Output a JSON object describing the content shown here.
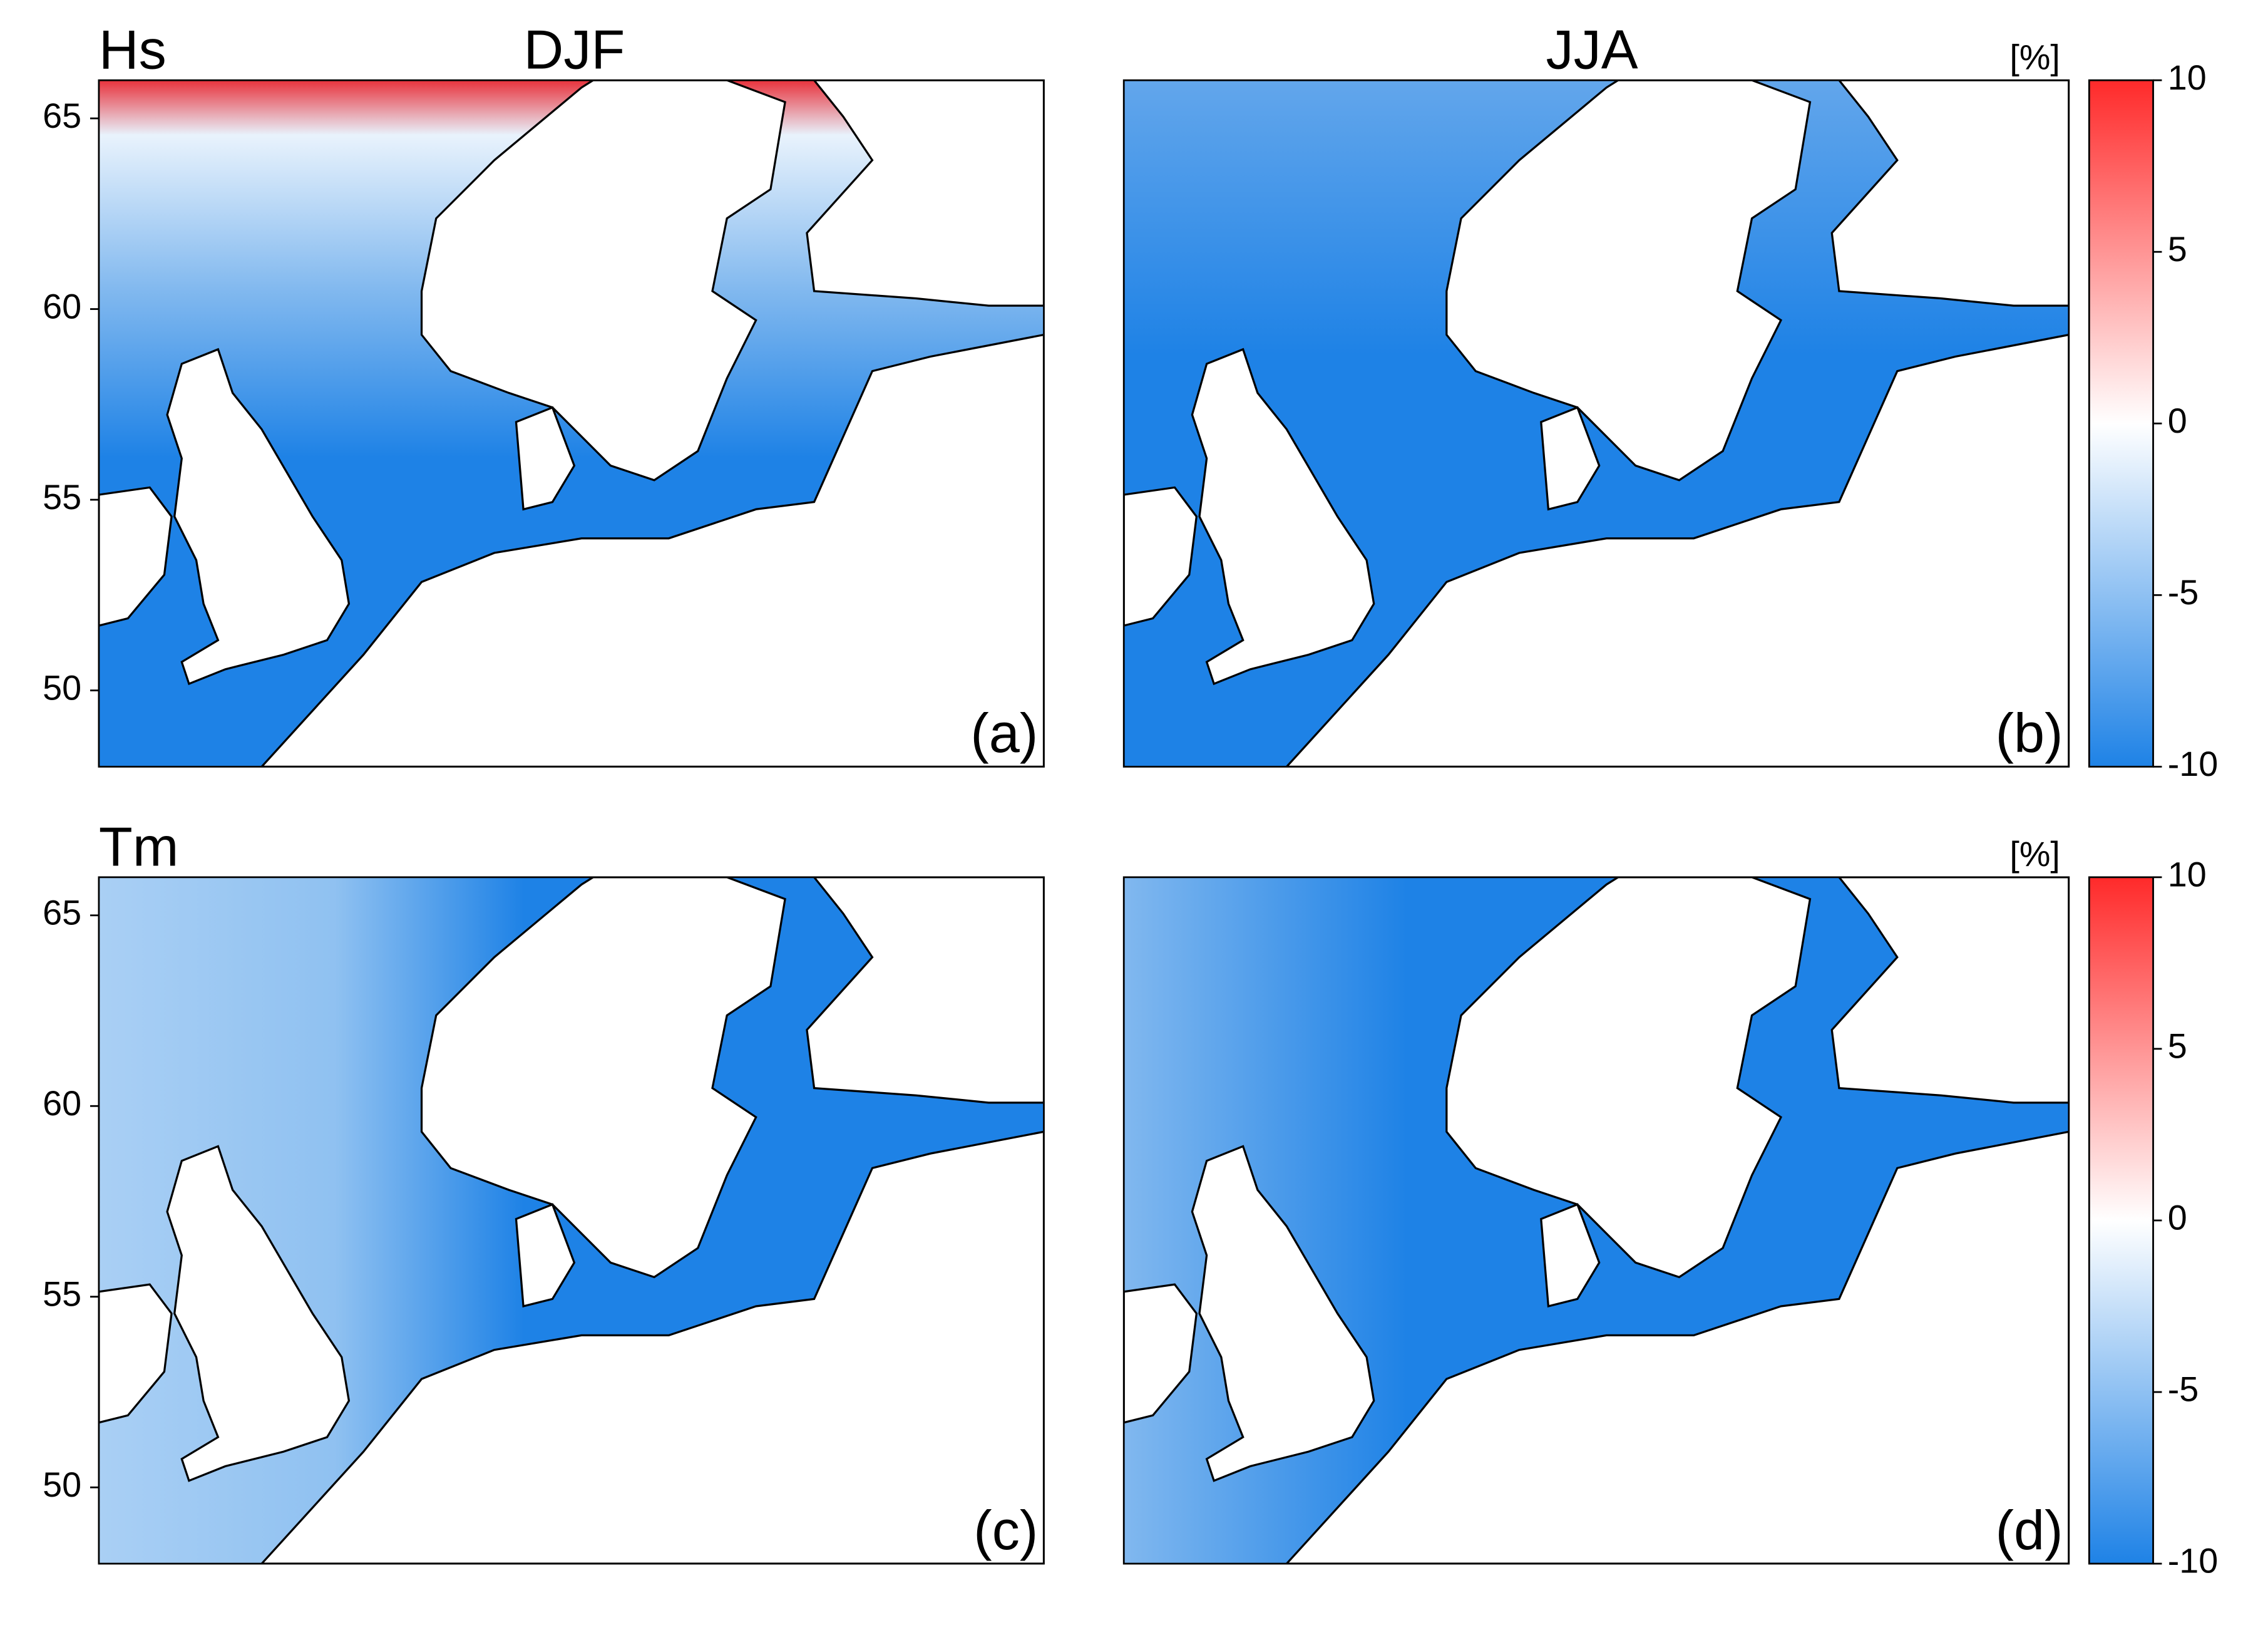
{
  "figure": {
    "row_labels": [
      "Hs",
      "Tm"
    ],
    "column_labels": [
      "DJF",
      "JJA"
    ],
    "unit": "[%]",
    "panels": [
      {
        "label": "(a)"
      },
      {
        "label": "(b)"
      },
      {
        "label": "(c)"
      },
      {
        "label": "(d)"
      }
    ],
    "ylim": [
      48,
      66
    ],
    "yticks": [
      50,
      55,
      60,
      65
    ],
    "colorbar": {
      "lim": [
        -10,
        10
      ],
      "ticks": [
        -10,
        -5,
        0,
        5,
        10
      ],
      "colors": [
        "#1e82e6",
        "#ffffff",
        "#ff2a2a"
      ]
    }
  }
}
